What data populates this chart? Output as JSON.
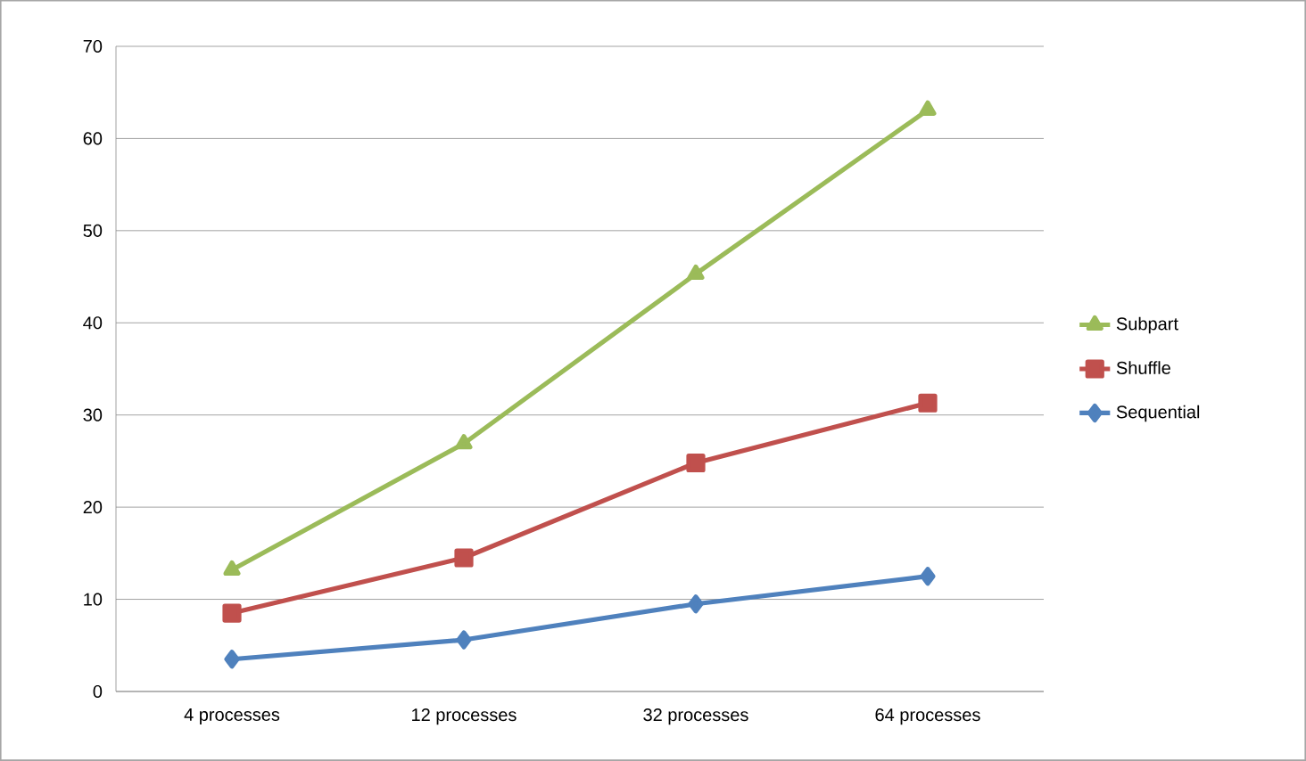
{
  "chart_data": {
    "type": "line",
    "categories": [
      "4 processes",
      "12 processes",
      "32 processes",
      "64 processes"
    ],
    "series": [
      {
        "name": "Sequential",
        "color": "#4f81bd",
        "marker": "diamond",
        "values": [
          3.5,
          5.6,
          9.5,
          12.5
        ]
      },
      {
        "name": "Shuffle",
        "color": "#c0504d",
        "marker": "square",
        "values": [
          8.5,
          14.5,
          24.8,
          31.3
        ]
      },
      {
        "name": "Subpart",
        "color": "#9bbb59",
        "marker": "triangle",
        "values": [
          13.2,
          26.9,
          45.3,
          63.1
        ]
      }
    ],
    "ylim": [
      0,
      70
    ],
    "yticks": [
      0,
      10,
      20,
      30,
      40,
      50,
      60,
      70
    ],
    "grid": "y",
    "legend": "right",
    "line_style": "solid"
  }
}
